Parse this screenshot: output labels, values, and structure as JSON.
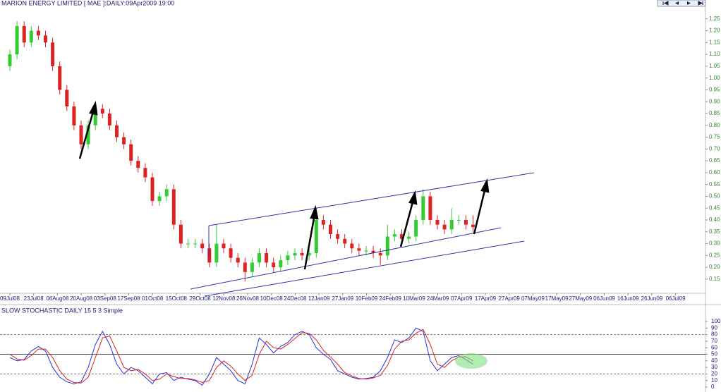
{
  "chart_data": [
    {
      "type": "candlestick",
      "title": "MARION ENERGY LIMITED [ MAE ]:DAILY:09Apr2009 19:00",
      "categories": [
        "09Jul08",
        "23Jul08",
        "06Aug08",
        "20Aug08",
        "03Sep08",
        "17Sep08",
        "01Oct08",
        "15Oct08",
        "29Oct08",
        "12Nov08",
        "26Nov08",
        "10Dec08",
        "24Dec08",
        "12Jan09",
        "27Jan09",
        "10Feb09",
        "24Feb09",
        "10Mar09",
        "24Mar09",
        "07Apr09",
        "17Apr09",
        "27Apr09",
        "07May09",
        "17May09",
        "27May09",
        "06Jun09",
        "16Jun09",
        "26Jun09",
        "06Jul09"
      ],
      "open": [
        1.05,
        1.1,
        1.22,
        1.15,
        1.2,
        1.18,
        1.15,
        1.05,
        0.95,
        0.88,
        0.8,
        0.72,
        0.8,
        0.87,
        0.85,
        0.8,
        0.75,
        0.72,
        0.65,
        0.62,
        0.58,
        0.48,
        0.5,
        0.53,
        0.38,
        0.3,
        0.3,
        0.3,
        0.28,
        0.22,
        0.3,
        0.28,
        0.24,
        0.22,
        0.18,
        0.22,
        0.26,
        0.22,
        0.2,
        0.23,
        0.25,
        0.26,
        0.25,
        0.26,
        0.4,
        0.38,
        0.34,
        0.32,
        0.3,
        0.28,
        0.27,
        0.27,
        0.26,
        0.25,
        0.33,
        0.34,
        0.32,
        0.33,
        0.4,
        0.5,
        0.4,
        0.38,
        0.36,
        0.4,
        0.4,
        0.38
      ],
      "high": [
        1.12,
        1.24,
        1.24,
        1.22,
        1.22,
        1.2,
        1.17,
        1.07,
        0.97,
        0.9,
        0.82,
        0.82,
        0.89,
        0.89,
        0.87,
        0.82,
        0.77,
        0.74,
        0.67,
        0.64,
        0.6,
        0.52,
        0.55,
        0.55,
        0.4,
        0.32,
        0.32,
        0.32,
        0.3,
        0.38,
        0.32,
        0.3,
        0.26,
        0.24,
        0.24,
        0.28,
        0.28,
        0.24,
        0.25,
        0.27,
        0.28,
        0.28,
        0.28,
        0.45,
        0.42,
        0.4,
        0.36,
        0.34,
        0.32,
        0.3,
        0.29,
        0.29,
        0.28,
        0.38,
        0.36,
        0.36,
        0.35,
        0.42,
        0.53,
        0.52,
        0.42,
        0.4,
        0.45,
        0.42,
        0.42,
        0.42
      ],
      "low": [
        1.03,
        1.08,
        1.13,
        1.13,
        1.16,
        1.13,
        1.03,
        0.93,
        0.86,
        0.78,
        0.7,
        0.7,
        0.78,
        0.83,
        0.78,
        0.73,
        0.7,
        0.63,
        0.6,
        0.56,
        0.46,
        0.46,
        0.48,
        0.36,
        0.28,
        0.28,
        0.28,
        0.26,
        0.2,
        0.2,
        0.26,
        0.22,
        0.2,
        0.14,
        0.16,
        0.2,
        0.2,
        0.18,
        0.18,
        0.21,
        0.23,
        0.23,
        0.23,
        0.24,
        0.36,
        0.32,
        0.3,
        0.28,
        0.26,
        0.25,
        0.25,
        0.24,
        0.21,
        0.23,
        0.31,
        0.3,
        0.3,
        0.31,
        0.38,
        0.38,
        0.36,
        0.34,
        0.34,
        0.38,
        0.36,
        0.35
      ],
      "close": [
        1.1,
        1.22,
        1.15,
        1.2,
        1.18,
        1.15,
        1.05,
        0.95,
        0.88,
        0.8,
        0.72,
        0.8,
        0.87,
        0.85,
        0.8,
        0.75,
        0.72,
        0.65,
        0.62,
        0.58,
        0.48,
        0.5,
        0.53,
        0.38,
        0.3,
        0.3,
        0.3,
        0.28,
        0.22,
        0.3,
        0.28,
        0.24,
        0.22,
        0.18,
        0.22,
        0.26,
        0.22,
        0.2,
        0.23,
        0.25,
        0.26,
        0.25,
        0.26,
        0.4,
        0.38,
        0.34,
        0.32,
        0.3,
        0.28,
        0.27,
        0.27,
        0.26,
        0.25,
        0.33,
        0.34,
        0.32,
        0.33,
        0.4,
        0.5,
        0.4,
        0.38,
        0.36,
        0.4,
        0.4,
        0.38,
        0.37
      ],
      "up_color": "#33cc33",
      "down_color": "#dd2222",
      "ylim": [
        0.09,
        1.3
      ],
      "yticks": [
        {
          "value": 0.15,
          "label": "0.15"
        },
        {
          "value": 0.2,
          "label": "0.20"
        },
        {
          "value": 0.25,
          "label": "0.25"
        },
        {
          "value": 0.3,
          "label": "0.30"
        },
        {
          "value": 0.35,
          "label": "0.35"
        },
        {
          "value": 0.4,
          "label": "0.40"
        },
        {
          "value": 0.45,
          "label": "0.45"
        },
        {
          "value": 0.5,
          "label": "0.50"
        },
        {
          "value": 0.55,
          "label": "0.55"
        },
        {
          "value": 0.6,
          "label": "0.60"
        },
        {
          "value": 0.65,
          "label": "0.65"
        },
        {
          "value": 0.7,
          "label": "0.70"
        },
        {
          "value": 0.75,
          "label": "0.75"
        },
        {
          "value": 0.8,
          "label": "0.80"
        },
        {
          "value": 0.85,
          "label": "0.85"
        },
        {
          "value": 0.9,
          "label": "0.90"
        },
        {
          "value": 0.95,
          "label": "0.95"
        },
        {
          "value": 1.0,
          "label": "1.00"
        },
        {
          "value": 1.05,
          "label": "1.05"
        },
        {
          "value": 1.1,
          "label": "1.10"
        },
        {
          "value": 1.15,
          "label": "1.15"
        },
        {
          "value": 1.2,
          "label": "1.20"
        },
        {
          "value": 1.25,
          "label": "1.25"
        }
      ]
    },
    {
      "type": "line",
      "title": "SLOW STOCHASTIC DAILY 15 5 3 Simple",
      "series": [
        {
          "color": "#2233dd",
          "values": [
            45,
            40,
            42,
            55,
            62,
            55,
            30,
            15,
            8,
            5,
            8,
            30,
            65,
            85,
            65,
            35,
            20,
            30,
            25,
            15,
            5,
            20,
            22,
            10,
            15,
            12,
            10,
            3,
            20,
            45,
            35,
            25,
            10,
            5,
            35,
            75,
            65,
            52,
            62,
            68,
            80,
            85,
            80,
            60,
            50,
            42,
            25,
            20,
            15,
            12,
            13,
            15,
            25,
            45,
            72,
            68,
            75,
            90,
            85,
            40,
            25,
            35,
            45,
            48,
            42,
            35
          ]
        },
        {
          "color": "#dd2222",
          "values": [
            50,
            43,
            41,
            48,
            58,
            58,
            45,
            25,
            12,
            7,
            6,
            15,
            45,
            75,
            78,
            55,
            30,
            25,
            27,
            20,
            10,
            12,
            20,
            16,
            13,
            13,
            11,
            7,
            10,
            30,
            40,
            32,
            20,
            10,
            18,
            50,
            70,
            60,
            58,
            65,
            74,
            83,
            82,
            72,
            56,
            46,
            35,
            22,
            17,
            13,
            12,
            14,
            18,
            33,
            58,
            70,
            72,
            82,
            88,
            65,
            35,
            30,
            40,
            46,
            46,
            40
          ]
        }
      ],
      "ylim": [
        0,
        100
      ],
      "yticks": [
        0,
        10,
        20,
        30,
        40,
        50,
        60,
        70,
        80,
        90,
        100
      ],
      "dashed_levels": [
        20,
        80
      ],
      "solid_levels": [
        50
      ]
    }
  ]
}
